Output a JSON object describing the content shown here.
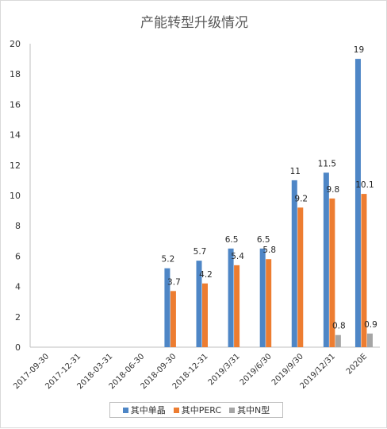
{
  "chart_data": {
    "type": "bar",
    "title": "产能转型升级情况",
    "categories": [
      "2017-09-30",
      "2017-12-31",
      "2018-03-31",
      "2018-06-30",
      "2018-09-30",
      "2018-12-31",
      "2019/3/31",
      "2019/6/30",
      "2019/9/30",
      "2019/12/31",
      "2020E"
    ],
    "series": [
      {
        "name": "其中单晶",
        "color": "#4e86c6",
        "values": [
          null,
          null,
          null,
          null,
          5.2,
          5.7,
          6.5,
          6.5,
          11,
          11.5,
          19
        ]
      },
      {
        "name": "其中PERC",
        "color": "#ed7d31",
        "values": [
          null,
          null,
          null,
          null,
          3.7,
          4.2,
          5.4,
          5.8,
          9.2,
          9.8,
          10.1
        ]
      },
      {
        "name": "其中N型",
        "color": "#a5a5a5",
        "values": [
          null,
          null,
          null,
          null,
          null,
          null,
          null,
          null,
          null,
          0.8,
          0.9
        ]
      }
    ],
    "ylim": [
      0,
      20
    ],
    "yticks": [
      0,
      2,
      4,
      6,
      8,
      10,
      12,
      14,
      16,
      18,
      20
    ],
    "grid": false,
    "legend": "bottom"
  }
}
